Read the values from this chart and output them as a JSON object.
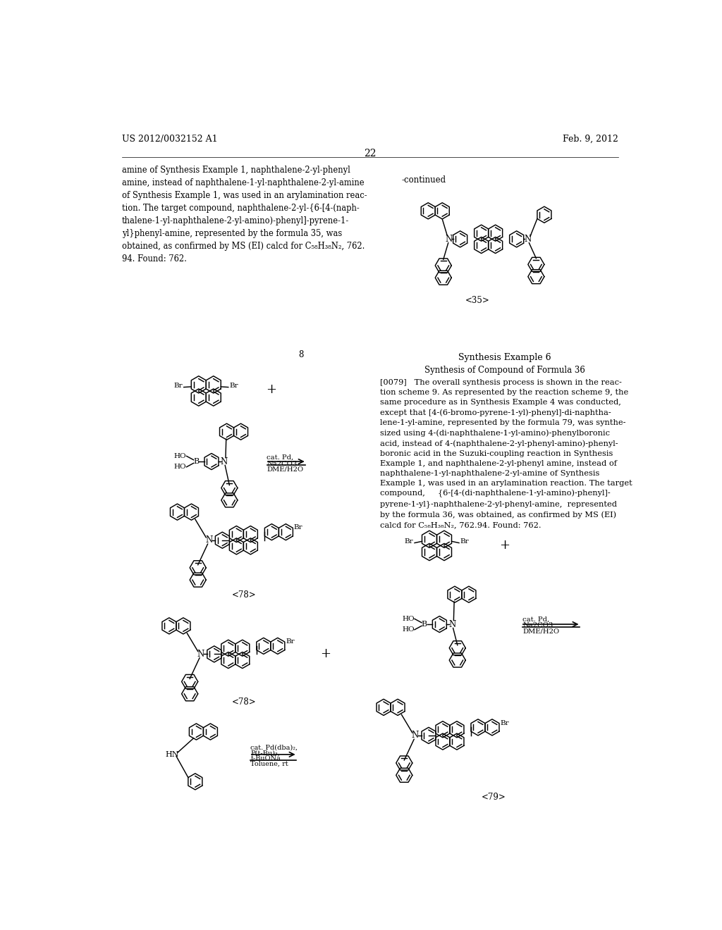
{
  "page_number": "22",
  "patent_number": "US 2012/0032152 A1",
  "patent_date": "Feb. 9, 2012",
  "background_color": "#ffffff",
  "text_color": "#000000",
  "formula35_label": "<35>",
  "synthesis6_title": "Synthesis Example 6",
  "synthesis6_subtitle": "Synthesis of Compound of Formula 36",
  "label_8": "8",
  "label_78a": "<78>",
  "label_78b": "<78>",
  "label_79": "<79>"
}
